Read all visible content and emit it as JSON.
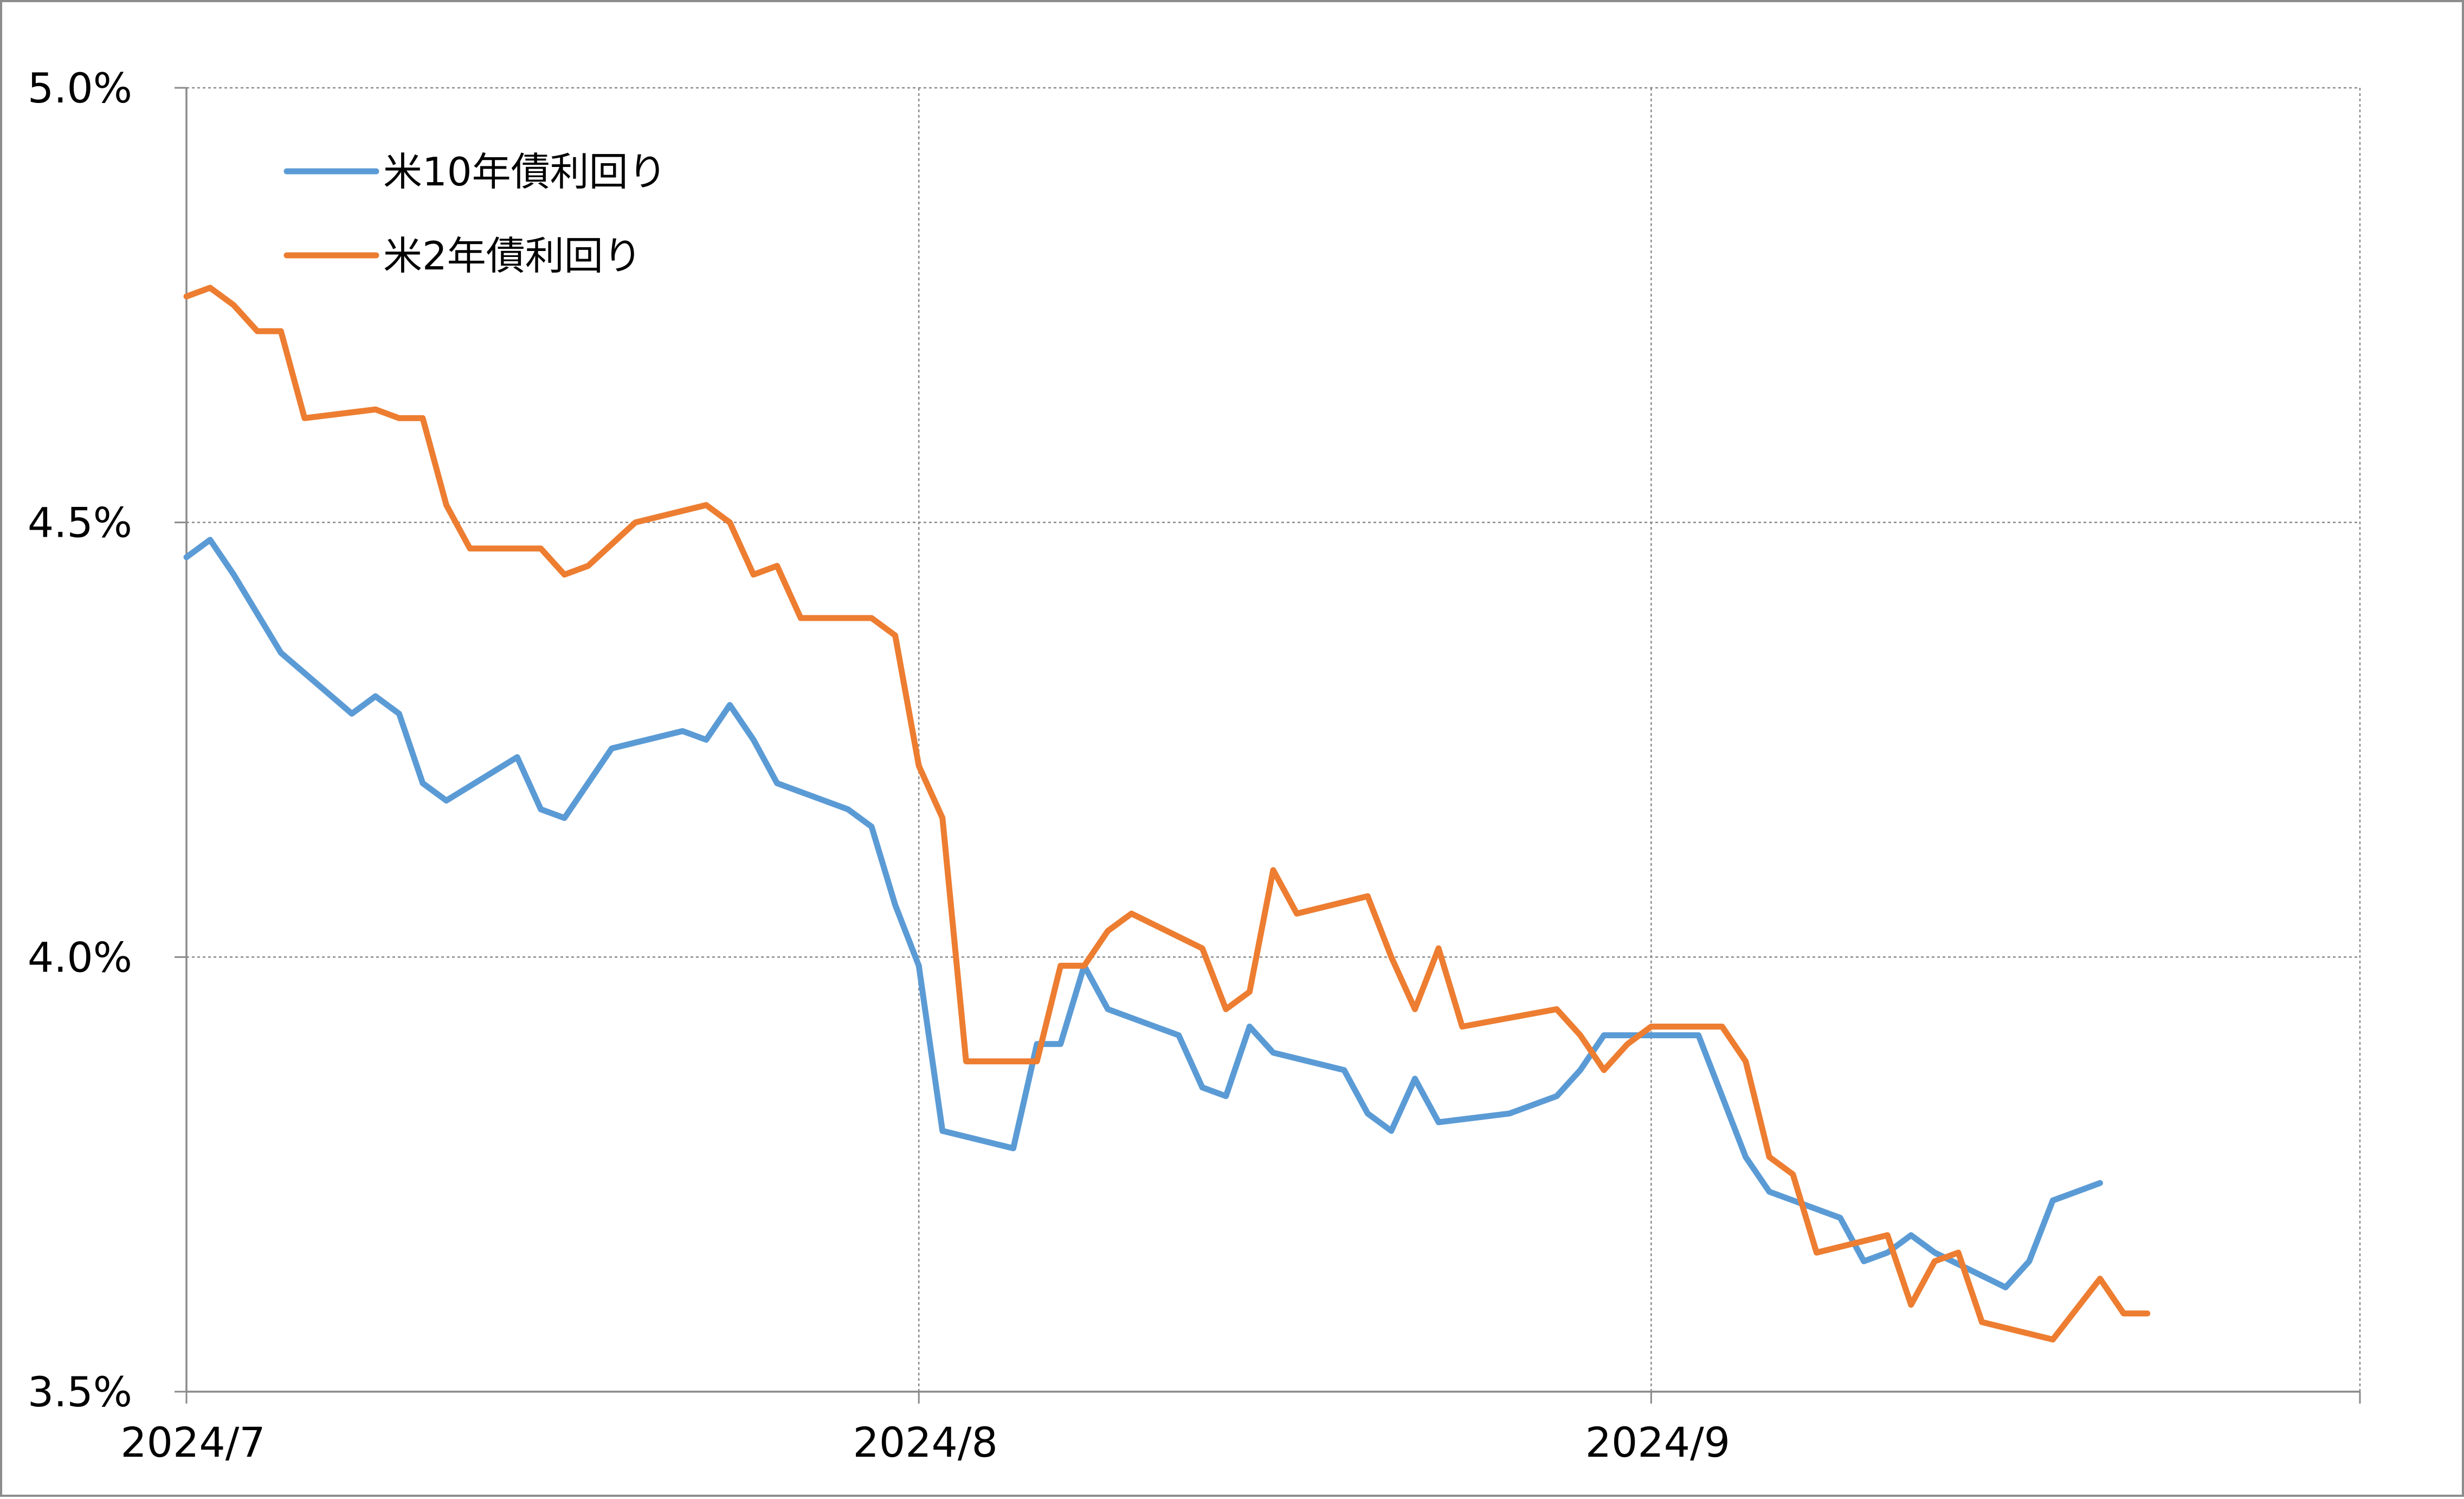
{
  "chart_data": {
    "type": "line",
    "title": "",
    "xlabel": "",
    "ylabel": "",
    "ylim": [
      3.5,
      5.0
    ],
    "y_ticks": [
      3.5,
      4.0,
      4.5,
      5.0
    ],
    "y_tick_labels": [
      "3.5%",
      "4.0%",
      "4.5%",
      "5.0%"
    ],
    "x_range": [
      "2024-07-01",
      "2024-09-30"
    ],
    "x_ticks": [
      "2024-07-01",
      "2024-08-01",
      "2024-09-01"
    ],
    "x_tick_labels": [
      "2024/7",
      "2024/8",
      "2024/9"
    ],
    "grid": true,
    "legend_position": "top-left",
    "series": [
      {
        "name": "米10年債利回り",
        "color": "#5b9bd5",
        "points": [
          [
            "2024-07-01",
            4.46
          ],
          [
            "2024-07-02",
            4.48
          ],
          [
            "2024-07-03",
            4.44
          ],
          [
            "2024-07-05",
            4.35
          ],
          [
            "2024-07-08",
            4.28
          ],
          [
            "2024-07-09",
            4.3
          ],
          [
            "2024-07-10",
            4.28
          ],
          [
            "2024-07-11",
            4.2
          ],
          [
            "2024-07-12",
            4.18
          ],
          [
            "2024-07-15",
            4.23
          ],
          [
            "2024-07-16",
            4.17
          ],
          [
            "2024-07-17",
            4.16
          ],
          [
            "2024-07-18",
            4.2
          ],
          [
            "2024-07-19",
            4.24
          ],
          [
            "2024-07-22",
            4.26
          ],
          [
            "2024-07-23",
            4.25
          ],
          [
            "2024-07-24",
            4.29
          ],
          [
            "2024-07-25",
            4.25
          ],
          [
            "2024-07-26",
            4.2
          ],
          [
            "2024-07-29",
            4.17
          ],
          [
            "2024-07-30",
            4.15
          ],
          [
            "2024-07-31",
            4.06
          ],
          [
            "2024-08-01",
            3.99
          ],
          [
            "2024-08-02",
            3.8
          ],
          [
            "2024-08-05",
            3.78
          ],
          [
            "2024-08-06",
            3.9
          ],
          [
            "2024-08-07",
            3.9
          ],
          [
            "2024-08-08",
            3.99
          ],
          [
            "2024-08-09",
            3.94
          ],
          [
            "2024-08-12",
            3.91
          ],
          [
            "2024-08-13",
            3.85
          ],
          [
            "2024-08-14",
            3.84
          ],
          [
            "2024-08-15",
            3.92
          ],
          [
            "2024-08-16",
            3.89
          ],
          [
            "2024-08-19",
            3.87
          ],
          [
            "2024-08-20",
            3.82
          ],
          [
            "2024-08-21",
            3.8
          ],
          [
            "2024-08-22",
            3.86
          ],
          [
            "2024-08-23",
            3.81
          ],
          [
            "2024-08-26",
            3.82
          ],
          [
            "2024-08-28",
            3.84
          ],
          [
            "2024-08-29",
            3.87
          ],
          [
            "2024-08-30",
            3.91
          ],
          [
            "2024-09-03",
            3.91
          ],
          [
            "2024-09-04",
            3.84
          ],
          [
            "2024-09-05",
            3.77
          ],
          [
            "2024-09-06",
            3.73
          ],
          [
            "2024-09-09",
            3.7
          ],
          [
            "2024-09-10",
            3.65
          ],
          [
            "2024-09-11",
            3.66
          ],
          [
            "2024-09-12",
            3.68
          ],
          [
            "2024-09-13",
            3.66
          ],
          [
            "2024-09-16",
            3.62
          ],
          [
            "2024-09-17",
            3.65
          ],
          [
            "2024-09-18",
            3.72
          ],
          [
            "2024-09-20",
            3.74
          ]
        ]
      },
      {
        "name": "米2年債利回り",
        "color": "#ed7d31",
        "points": [
          [
            "2024-07-01",
            4.76
          ],
          [
            "2024-07-02",
            4.77
          ],
          [
            "2024-07-03",
            4.75
          ],
          [
            "2024-07-04",
            4.72
          ],
          [
            "2024-07-05",
            4.72
          ],
          [
            "2024-07-06",
            4.62
          ],
          [
            "2024-07-09",
            4.63
          ],
          [
            "2024-07-10",
            4.62
          ],
          [
            "2024-07-11",
            4.62
          ],
          [
            "2024-07-12",
            4.52
          ],
          [
            "2024-07-13",
            4.47
          ],
          [
            "2024-07-16",
            4.47
          ],
          [
            "2024-07-17",
            4.44
          ],
          [
            "2024-07-18",
            4.45
          ],
          [
            "2024-07-20",
            4.5
          ],
          [
            "2024-07-23",
            4.52
          ],
          [
            "2024-07-24",
            4.5
          ],
          [
            "2024-07-25",
            4.44
          ],
          [
            "2024-07-26",
            4.45
          ],
          [
            "2024-07-27",
            4.39
          ],
          [
            "2024-07-30",
            4.39
          ],
          [
            "2024-07-31",
            4.37
          ],
          [
            "2024-08-01",
            4.22
          ],
          [
            "2024-08-02",
            4.16
          ],
          [
            "2024-08-03",
            3.88
          ],
          [
            "2024-08-06",
            3.88
          ],
          [
            "2024-08-07",
            3.99
          ],
          [
            "2024-08-08",
            3.99
          ],
          [
            "2024-08-09",
            4.03
          ],
          [
            "2024-08-10",
            4.05
          ],
          [
            "2024-08-13",
            4.01
          ],
          [
            "2024-08-14",
            3.94
          ],
          [
            "2024-08-15",
            3.96
          ],
          [
            "2024-08-16",
            4.1
          ],
          [
            "2024-08-17",
            4.05
          ],
          [
            "2024-08-20",
            4.07
          ],
          [
            "2024-08-21",
            4.0
          ],
          [
            "2024-08-22",
            3.94
          ],
          [
            "2024-08-23",
            4.01
          ],
          [
            "2024-08-24",
            3.92
          ],
          [
            "2024-08-28",
            3.94
          ],
          [
            "2024-08-29",
            3.91
          ],
          [
            "2024-08-30",
            3.87
          ],
          [
            "2024-08-31",
            3.9
          ],
          [
            "2024-09-01",
            3.92
          ],
          [
            "2024-09-04",
            3.92
          ],
          [
            "2024-09-05",
            3.88
          ],
          [
            "2024-09-06",
            3.77
          ],
          [
            "2024-09-07",
            3.75
          ],
          [
            "2024-09-08",
            3.66
          ],
          [
            "2024-09-11",
            3.68
          ],
          [
            "2024-09-12",
            3.6
          ],
          [
            "2024-09-13",
            3.65
          ],
          [
            "2024-09-14",
            3.66
          ],
          [
            "2024-09-15",
            3.58
          ],
          [
            "2024-09-18",
            3.56
          ],
          [
            "2024-09-20",
            3.63
          ],
          [
            "2024-09-21",
            3.59
          ],
          [
            "2024-09-22",
            3.59
          ]
        ]
      }
    ]
  }
}
